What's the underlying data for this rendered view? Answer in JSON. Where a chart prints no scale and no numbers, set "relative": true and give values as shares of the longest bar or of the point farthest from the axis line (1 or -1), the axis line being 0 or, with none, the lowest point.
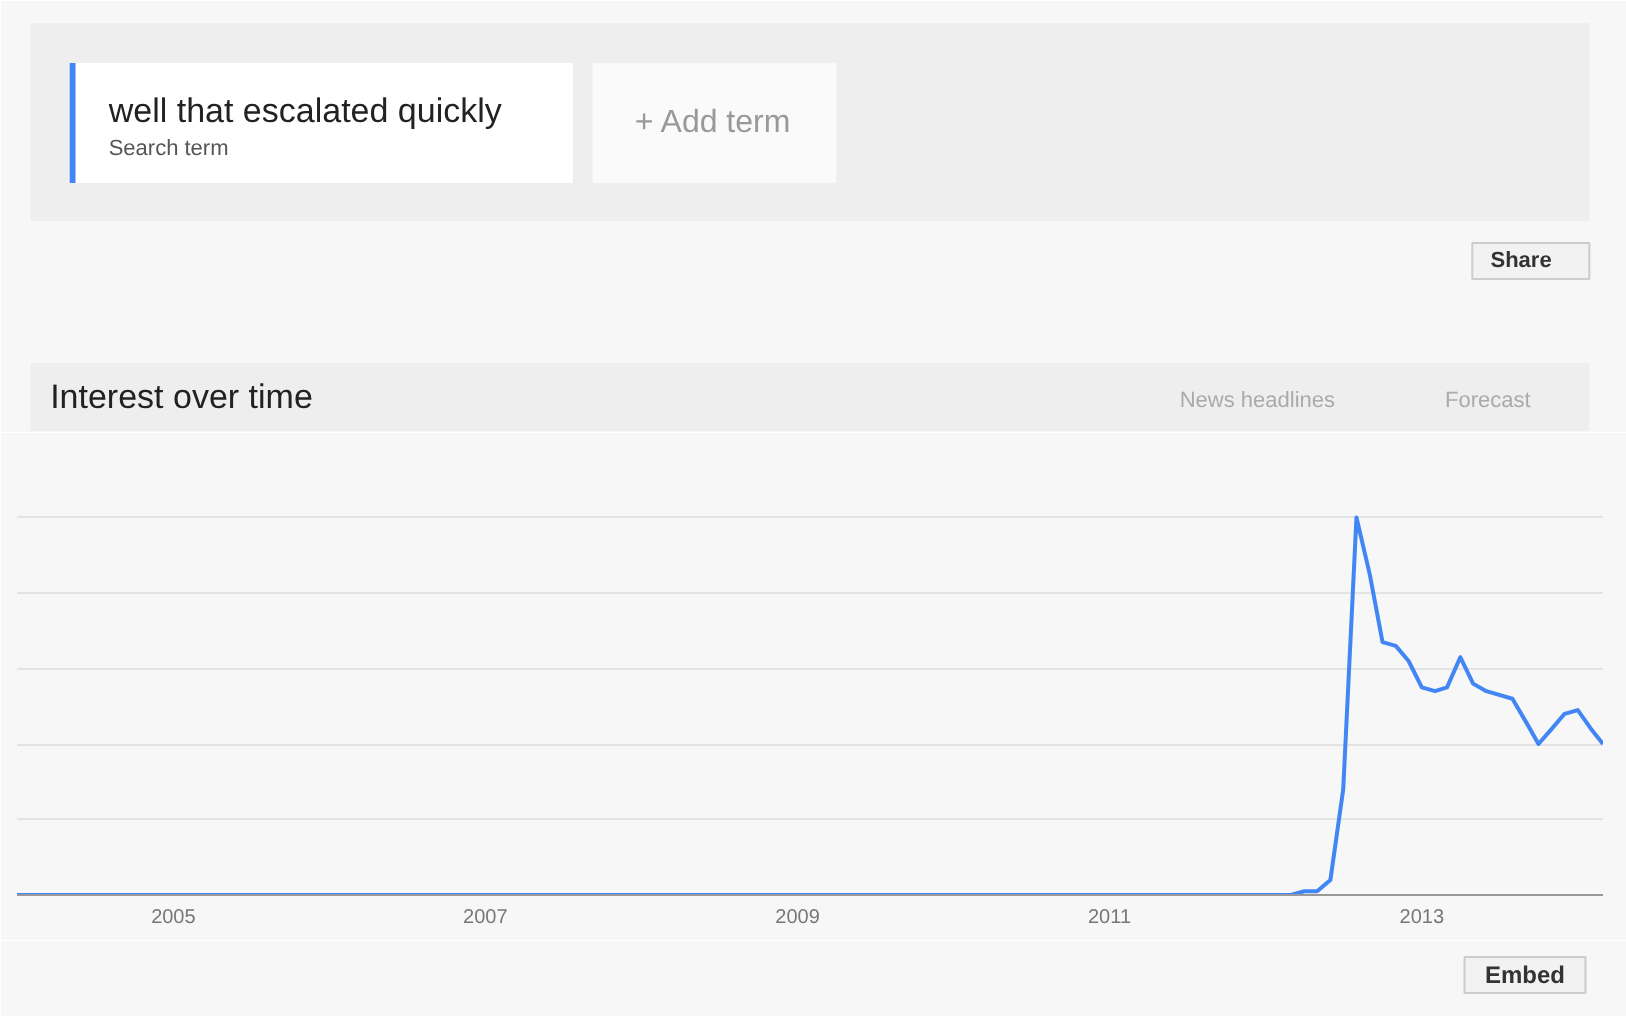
{
  "chart_data": {
    "type": "line",
    "title": "Interest over time",
    "x": [
      "2004-01",
      "2012-03",
      "2012-04",
      "2012-05",
      "2012-06",
      "2012-07",
      "2012-08",
      "2012-09",
      "2012-10",
      "2012-11",
      "2012-12",
      "2013-01",
      "2013-02",
      "2013-03",
      "2013-04",
      "2013-05",
      "2013-06",
      "2013-07",
      "2013-08",
      "2013-09",
      "2013-10",
      "2013-11",
      "2013-12",
      "2014-01",
      "2014-02",
      "2014-03"
    ],
    "series": [
      {
        "name": "well that escalated quickly",
        "color": "#4285f4",
        "values": [
          0,
          0,
          0.01,
          0.01,
          0.04,
          0.28,
          1,
          0.85,
          0.67,
          0.66,
          0.62,
          0.55,
          0.54,
          0.55,
          0.63,
          0.56,
          0.54,
          0.53,
          0.52,
          0.46,
          0.4,
          0.44,
          0.48,
          0.49,
          0.44,
          0.4
        ]
      }
    ],
    "relative": true,
    "xlim": [
      "2004-01",
      "2014-03"
    ],
    "xticks": [
      "2005",
      "2007",
      "2009",
      "2011",
      "2013"
    ],
    "grid": "y",
    "legend": "top left",
    "annotations": [
      "Search term",
      "+ Add term",
      "Share",
      "News headlines",
      "Forecast",
      "Embed"
    ]
  }
}
